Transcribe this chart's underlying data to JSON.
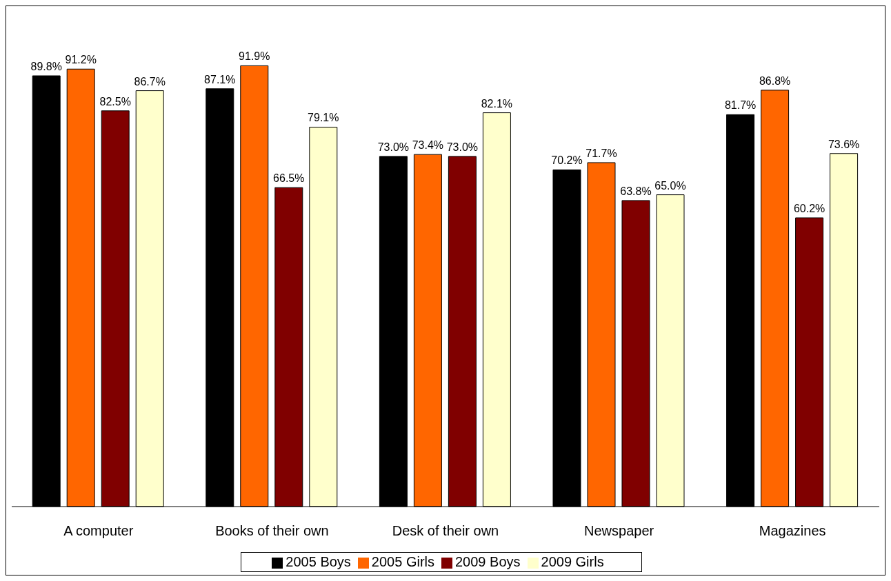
{
  "chart_data": {
    "type": "bar",
    "categories": [
      "A computer",
      "Books of their own",
      "Desk of their own",
      "Newspaper",
      "Magazines"
    ],
    "series": [
      {
        "name": "2005 Boys",
        "color": "#000000",
        "values": [
          89.8,
          87.1,
          73.0,
          70.2,
          81.7
        ],
        "value_labels": [
          "89.8%",
          "87.1%",
          "73.0%",
          "70.2%",
          "81.7%"
        ]
      },
      {
        "name": "2005 Girls",
        "color": "#ff6600",
        "values": [
          91.2,
          91.9,
          73.4,
          71.7,
          86.8
        ],
        "value_labels": [
          "91.2%",
          "91.9%",
          "73.4%",
          "71.7%",
          "86.8%"
        ]
      },
      {
        "name": "2009 Boys",
        "color": "#800000",
        "values": [
          82.5,
          66.5,
          73.0,
          63.8,
          60.2
        ],
        "value_labels": [
          "82.5%",
          "66.5%",
          "73.0%",
          "63.8%",
          "60.2%"
        ]
      },
      {
        "name": "2009 Girls",
        "color": "#ffffcc",
        "values": [
          86.7,
          79.1,
          82.1,
          65.0,
          73.6
        ],
        "value_labels": [
          "86.7%",
          "79.1%",
          "82.1%",
          "65.0%",
          "73.6%"
        ]
      }
    ],
    "legend": "bottom",
    "grid": false
  }
}
